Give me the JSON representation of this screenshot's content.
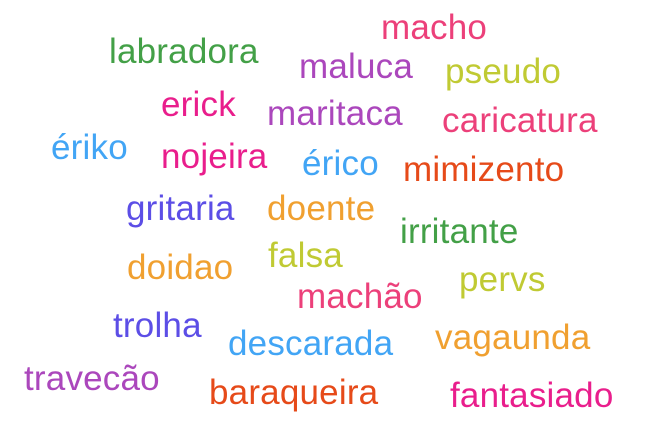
{
  "words": [
    {
      "text": "macho",
      "color": "#ec407a"
    },
    {
      "text": "labradora",
      "color": "#43a047"
    },
    {
      "text": "maluca",
      "color": "#ab47bc"
    },
    {
      "text": "pseudo",
      "color": "#c0ca33"
    },
    {
      "text": "erick",
      "color": "#e91e8c"
    },
    {
      "text": "maritaca",
      "color": "#ab47bc"
    },
    {
      "text": "caricatura",
      "color": "#ec407a"
    },
    {
      "text": "ériko",
      "color": "#42a5f5"
    },
    {
      "text": "nojeira",
      "color": "#e91e8c"
    },
    {
      "text": "érico",
      "color": "#42a5f5"
    },
    {
      "text": "mimizento",
      "color": "#e64a19"
    },
    {
      "text": "gritaria",
      "color": "#5c4ee6"
    },
    {
      "text": "doente",
      "color": "#f0a030"
    },
    {
      "text": "irritante",
      "color": "#43a047"
    },
    {
      "text": "falsa",
      "color": "#c0ca33"
    },
    {
      "text": "doidao",
      "color": "#f0a030"
    },
    {
      "text": "pervs",
      "color": "#c0ca33"
    },
    {
      "text": "machão",
      "color": "#ec407a"
    },
    {
      "text": "trolha",
      "color": "#5c4ee6"
    },
    {
      "text": "vagaunda",
      "color": "#f0a030"
    },
    {
      "text": "descarada",
      "color": "#42a5f5"
    },
    {
      "text": "travecão",
      "color": "#ab47bc"
    },
    {
      "text": "baraqueira",
      "color": "#e64a19"
    },
    {
      "text": "fantasiado",
      "color": "#e91e8c"
    }
  ]
}
